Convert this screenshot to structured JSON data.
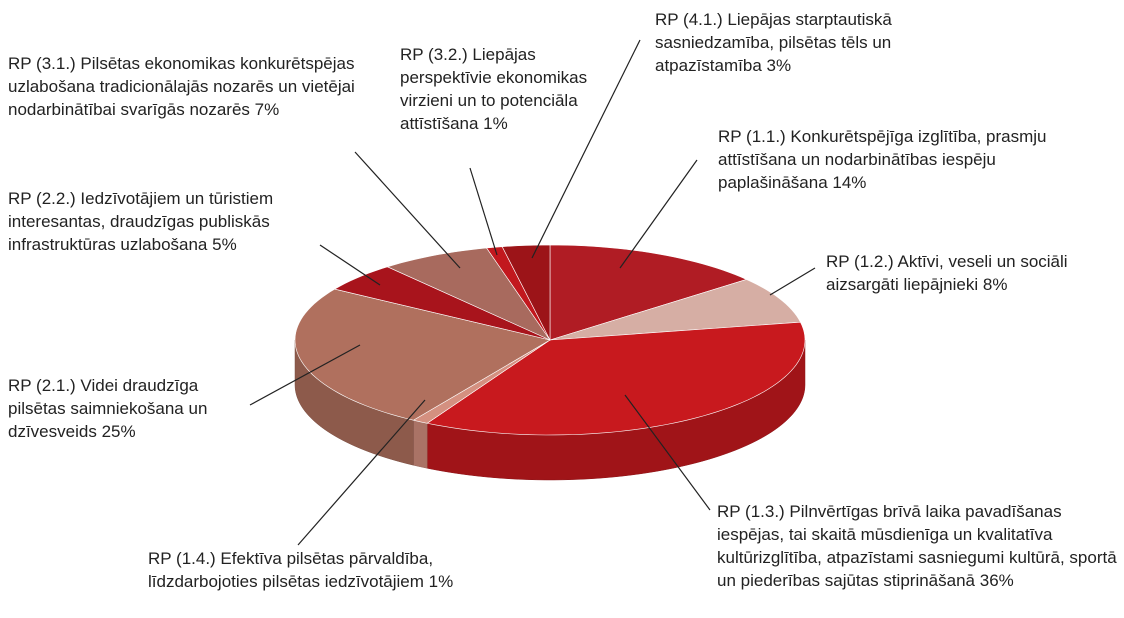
{
  "chart_data": {
    "type": "pie",
    "categories": [
      "RP (1.1.) Konkurētspējīga izglītība, prasmju attīstīšana un nodarbinātības iespēju paplašināšana",
      "RP (1.2.) Aktīvi, veseli un sociāli aizsargāti liepājnieki",
      "RP (1.3.) Pilnvērtīgas brīvā laika pavadīšanas iespējas, tai skaitā mūsdienīga un kvalitatīva kultūrizglītība, atpazīstami sasniegumi kultūrā, sportā un piederības sajūtas stiprināšanā ",
      "RP (1.4.) Efektīva pilsētas pārvaldība, līdzdarbojoties pilsētas iedzīvotājiem",
      "RP (2.1.) Videi draudzīga pilsētas saimniekošana un dzīvesveids",
      "RP (2.2.) Iedzīvotājiem un tūristiem interesantas, draudzīgas publiskās infrastruktūras uzlabošana",
      "RP (3.1.) Pilsētas ekonomikas konkurētspējas uzlabošana tradicionālajās nozarēs un vietējai nodarbinātībai svarīgās nozarēs",
      "RP (3.2.) Liepājas perspektīvie ekonomikas virzieni un to potenciāla attīstīšana",
      "RP (4.1.) Liepājas starptautiskā sasniedzamība, pilsētas tēls un atpazīstamība"
    ],
    "values": [
      14,
      8,
      36,
      1,
      25,
      5,
      7,
      1,
      3
    ],
    "value_labels": [
      "14%",
      "8%",
      "36%",
      "1%",
      "25%",
      "5%",
      "7%",
      "1%",
      "3%"
    ],
    "colors": [
      "#b01c24",
      "#d6aea4",
      "#c8191e",
      "#d49080",
      "#b0705e",
      "#a8141c",
      "#a86a5e",
      "#c2181e",
      "#9c1418"
    ]
  }
}
